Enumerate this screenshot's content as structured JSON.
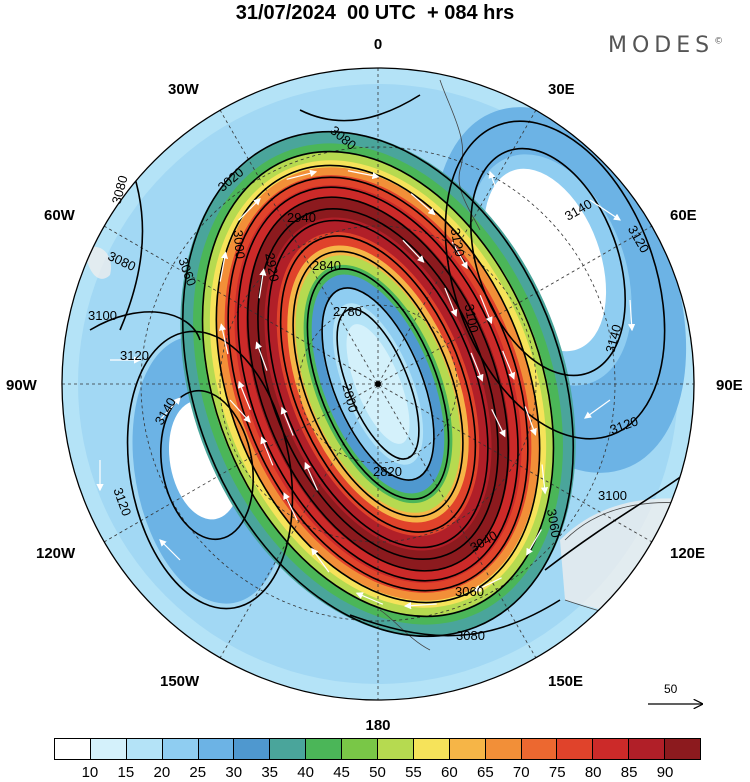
{
  "title": "31/07/2024  00 UTC  + 084 hrs",
  "brand": {
    "name": "MODES",
    "mark": "©"
  },
  "longitude_labels": {
    "lon_0": "0",
    "lon_30e": "30E",
    "lon_60e": "60E",
    "lon_90e": "90E",
    "lon_120e": "120E",
    "lon_150e": "150E",
    "lon_180": "180",
    "lon_150w": "150W",
    "lon_120w": "120W",
    "lon_90w": "90W",
    "lon_60w": "60W",
    "lon_30w": "30W"
  },
  "contour_labels": {
    "c2780": "2780",
    "c2800": "2800",
    "c2820": "2820",
    "c2840": "2840",
    "c2920": "2920",
    "c2940": "2940",
    "c3000": "3000",
    "c3020": "3020",
    "c3040": "3040",
    "c3060": "3060",
    "c3080": "3080",
    "c3100": "3100",
    "c3120": "3120",
    "c3140": "3140"
  },
  "reference_vector": {
    "label": "50"
  },
  "colorbar": {
    "colors": [
      "#ffffff",
      "#d4f1fb",
      "#b4e3f7",
      "#8fcdf1",
      "#6cb3e5",
      "#4f98cf",
      "#4aa59b",
      "#4bb658",
      "#79c747",
      "#b6da50",
      "#f6e35a",
      "#f6b547",
      "#f28f38",
      "#ec6830",
      "#e0432b",
      "#cc2a29",
      "#b11f28",
      "#8c1a1e"
    ],
    "labels": [
      "10",
      "15",
      "20",
      "25",
      "30",
      "35",
      "40",
      "45",
      "50",
      "55",
      "60",
      "65",
      "70",
      "75",
      "80",
      "85",
      "90"
    ]
  }
}
